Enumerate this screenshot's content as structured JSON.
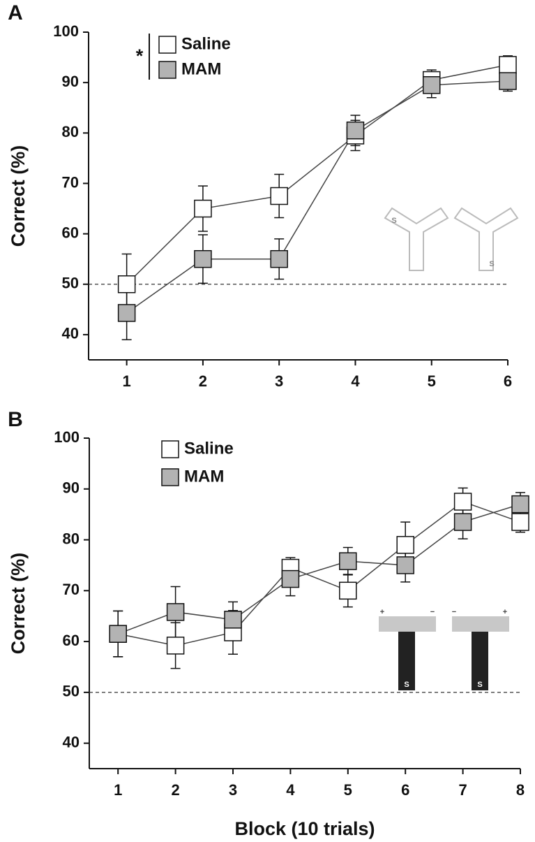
{
  "chart_data": [
    {
      "type": "line",
      "panel_label": "A",
      "ylabel": "Correct (%)",
      "annotation": "*",
      "x": [
        1,
        2,
        3,
        4,
        5,
        6
      ],
      "xlim": [
        0.5,
        6
      ],
      "xticks": [
        1,
        2,
        3,
        4,
        5,
        6
      ],
      "ylim": [
        35,
        100
      ],
      "yticks": [
        40,
        50,
        60,
        70,
        80,
        90,
        100
      ],
      "reference_line": 50,
      "series": [
        {
          "name": "Saline",
          "color": "#ffffff",
          "values": [
            50,
            65,
            67.5,
            79.5,
            90.5,
            93.5
          ],
          "errors": [
            6,
            4.5,
            4.3,
            3,
            2,
            1.8
          ]
        },
        {
          "name": "MAM",
          "color": "#b3b3b3",
          "values": [
            44.3,
            55,
            55,
            80.5,
            89.5,
            90.3
          ],
          "errors": [
            5.3,
            4.8,
            4,
            3,
            2.5,
            2
          ]
        }
      ],
      "inset_labels": [
        "S",
        "S"
      ]
    },
    {
      "type": "line",
      "panel_label": "B",
      "ylabel": "Correct (%)",
      "xlabel": "Block (10 trials)",
      "x": [
        1,
        2,
        3,
        4,
        5,
        6,
        7,
        8
      ],
      "xlim": [
        0.5,
        8
      ],
      "xticks": [
        1,
        2,
        3,
        4,
        5,
        6,
        7,
        8
      ],
      "ylim": [
        35,
        100
      ],
      "yticks": [
        40,
        50,
        60,
        70,
        80,
        90,
        100
      ],
      "reference_line": 50,
      "series": [
        {
          "name": "Saline",
          "color": "#ffffff",
          "values": [
            61.5,
            59.2,
            61.8,
            74.5,
            70,
            79,
            87.5,
            83.5
          ],
          "errors": [
            4.5,
            4.5,
            4.3,
            2,
            3.2,
            4.5,
            2.7,
            2
          ]
        },
        {
          "name": "MAM",
          "color": "#b3b3b3",
          "values": [
            61.5,
            65.8,
            64.3,
            72.3,
            75.8,
            75,
            83.5,
            87
          ],
          "errors": [
            4.5,
            5,
            3.5,
            3.3,
            2.7,
            3.3,
            3.3,
            2.3
          ]
        }
      ],
      "inset_labels": [
        "+",
        "−",
        "S",
        "−",
        "+",
        "S"
      ]
    }
  ]
}
